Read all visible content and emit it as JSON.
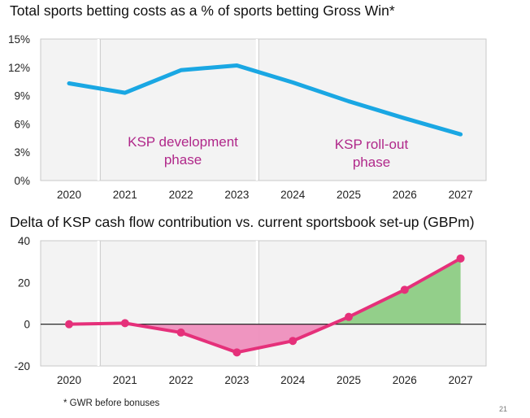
{
  "chart_data": [
    {
      "type": "line",
      "title": "Total sports betting costs as a % of sports betting Gross Win*",
      "categories": [
        "2020",
        "2021",
        "2022",
        "2023",
        "2024",
        "2025",
        "2026",
        "2027"
      ],
      "series": [
        {
          "values": [
            10.3,
            9.3,
            11.7,
            12.2,
            10.4,
            8.4,
            6.6,
            4.9
          ]
        }
      ],
      "ylim": [
        0,
        15
      ],
      "yticks": [
        "0%",
        "3%",
        "6%",
        "9%",
        "12%",
        "15%"
      ],
      "annotations": [
        {
          "text_lines": [
            "KSP development",
            "phase"
          ]
        },
        {
          "text_lines": [
            "KSP roll-out",
            "phase"
          ]
        }
      ],
      "line_color": "#1aa7e3",
      "annotation_color": "#b0288a",
      "grid": false
    },
    {
      "type": "area",
      "title": "Delta of KSP cash flow contribution vs. current sportsbook set-up (GBPm)",
      "categories": [
        "2020",
        "2021",
        "2022",
        "2023",
        "2024",
        "2025",
        "2026",
        "2027"
      ],
      "series": [
        {
          "values": [
            0,
            0.5,
            -4,
            -13.5,
            -8,
            3.5,
            16.5,
            31.5
          ]
        }
      ],
      "ylim": [
        -20,
        40
      ],
      "yticks": [
        "-20",
        "0",
        "20",
        "40"
      ],
      "line_color": "#e5307a",
      "negative_fill": "#ee8fbd",
      "positive_fill": "#8dcc84",
      "grid": false
    }
  ],
  "footnote": "* GWR before bonuses",
  "page_number": "21"
}
